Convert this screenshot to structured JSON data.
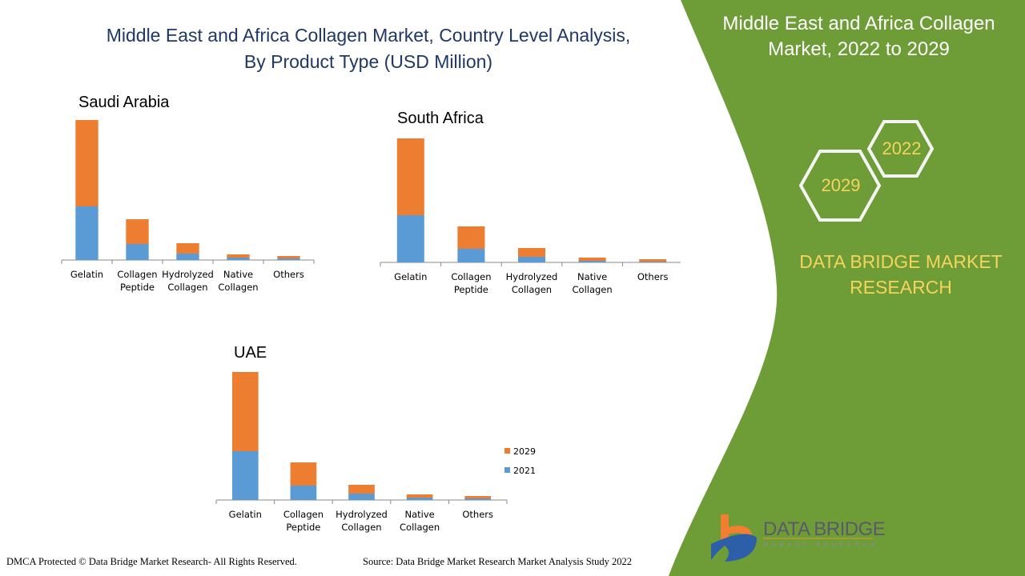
{
  "title_line1": "Middle East and Africa Collagen Market, Country Level Analysis,",
  "title_line2": "By Product Type (USD Million)",
  "panel": {
    "title_line1": "Middle East and Africa Collagen",
    "title_line2": "Market, 2022 to 2029",
    "hex_years": [
      "2022",
      "2029"
    ],
    "brand_line1": "DATA BRIDGE MARKET",
    "brand_line2": "RESEARCH",
    "logo_name": "DATA BRIDGE",
    "logo_sub": "MARKET RESEARCH",
    "color": "#6e9d38"
  },
  "footer": {
    "left": "DMCA Protected © Data Bridge Market Research- All Rights Reserved.",
    "right": "Source: Data Bridge Market Research Market Analysis Study 2022"
  },
  "chart_data": [
    {
      "type": "bar",
      "stacked": true,
      "title": "Saudi Arabia",
      "categories": [
        "Gelatin",
        "Collagen Peptide",
        "Hydrolyzed Collagen",
        "Native Collagen",
        "Others"
      ],
      "series": [
        {
          "name": "2021",
          "color": "#5b9bd5",
          "values": [
            67,
            20,
            8,
            3,
            2
          ]
        },
        {
          "name": "2029",
          "color": "#ed7d31",
          "values": [
            108,
            31,
            13,
            4,
            3
          ]
        }
      ],
      "ylim": [
        0,
        175
      ],
      "grid": false
    },
    {
      "type": "bar",
      "stacked": true,
      "title": "South Africa",
      "categories": [
        "Gelatin",
        "Collagen Peptide",
        "Hydrolyzed Collagen",
        "Native Collagen",
        "Others"
      ],
      "series": [
        {
          "name": "2021",
          "color": "#5b9bd5",
          "values": [
            59,
            17,
            7,
            2,
            1
          ]
        },
        {
          "name": "2029",
          "color": "#ed7d31",
          "values": [
            96,
            28,
            11,
            4,
            3
          ]
        }
      ],
      "ylim": [
        0,
        155
      ],
      "grid": false
    },
    {
      "type": "bar",
      "stacked": true,
      "title": "UAE",
      "categories": [
        "Gelatin",
        "Collagen Peptide",
        "Hydrolyzed Collagen",
        "Native Collagen",
        "Others"
      ],
      "series": [
        {
          "name": "2021",
          "color": "#5b9bd5",
          "values": [
            61,
            18,
            8,
            3,
            2
          ]
        },
        {
          "name": "2029",
          "color": "#ed7d31",
          "values": [
            99,
            29,
            11,
            4,
            3
          ]
        }
      ],
      "ylim": [
        0,
        160
      ],
      "grid": false,
      "legend": {
        "placement": "right",
        "entries": [
          "2029",
          "2021"
        ]
      }
    }
  ]
}
